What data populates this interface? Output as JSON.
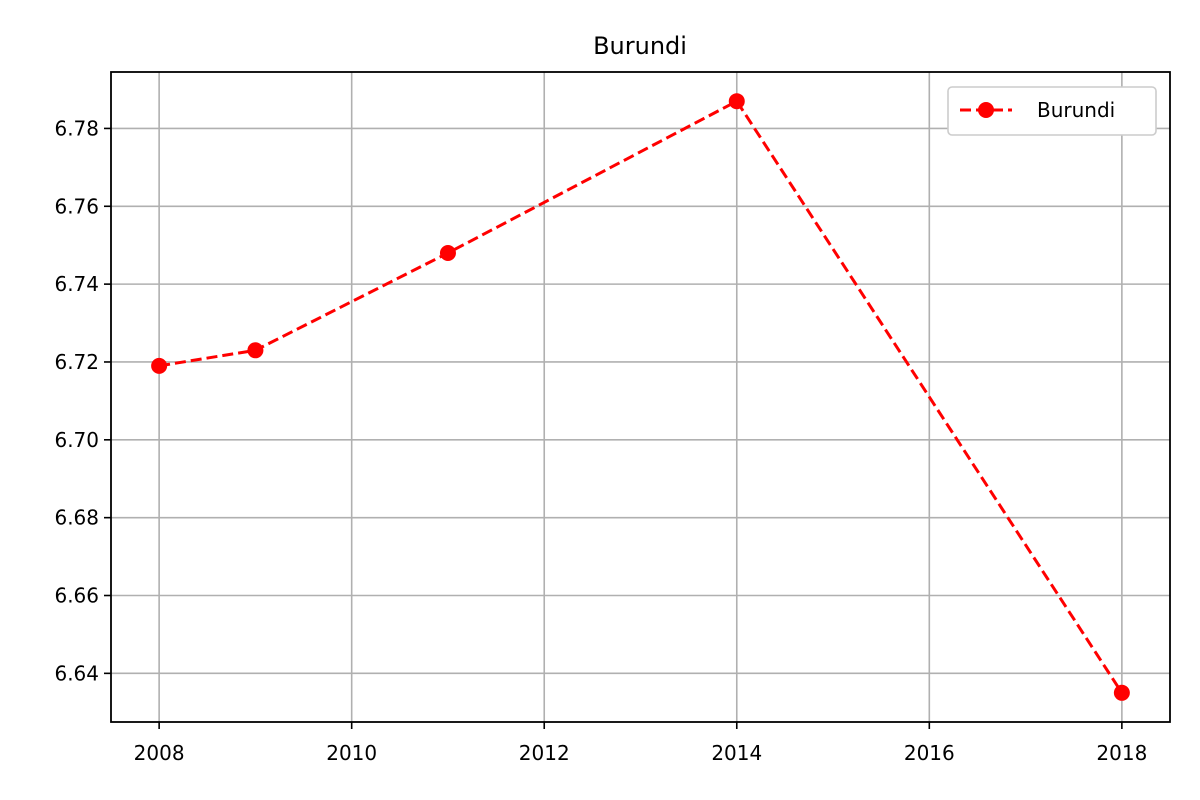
{
  "chart_data": {
    "type": "line",
    "title": "Burundi",
    "xlabel": "",
    "ylabel": "",
    "x": [
      2008,
      2009,
      2011,
      2014,
      2018
    ],
    "series": [
      {
        "name": "Burundi",
        "values": [
          6.719,
          6.723,
          6.748,
          6.787,
          6.635
        ],
        "color": "#ff0000",
        "line_style": "dashed",
        "marker": "circle"
      }
    ],
    "xlim": [
      2007.5,
      2018.5
    ],
    "ylim": [
      6.6275,
      6.7945
    ],
    "x_ticks": [
      "2008",
      "2010",
      "2012",
      "2014",
      "2016",
      "2018"
    ],
    "y_ticks": [
      "6.64",
      "6.66",
      "6.68",
      "6.70",
      "6.72",
      "6.74",
      "6.76",
      "6.78"
    ],
    "grid": true,
    "legend_position": "top-right"
  }
}
